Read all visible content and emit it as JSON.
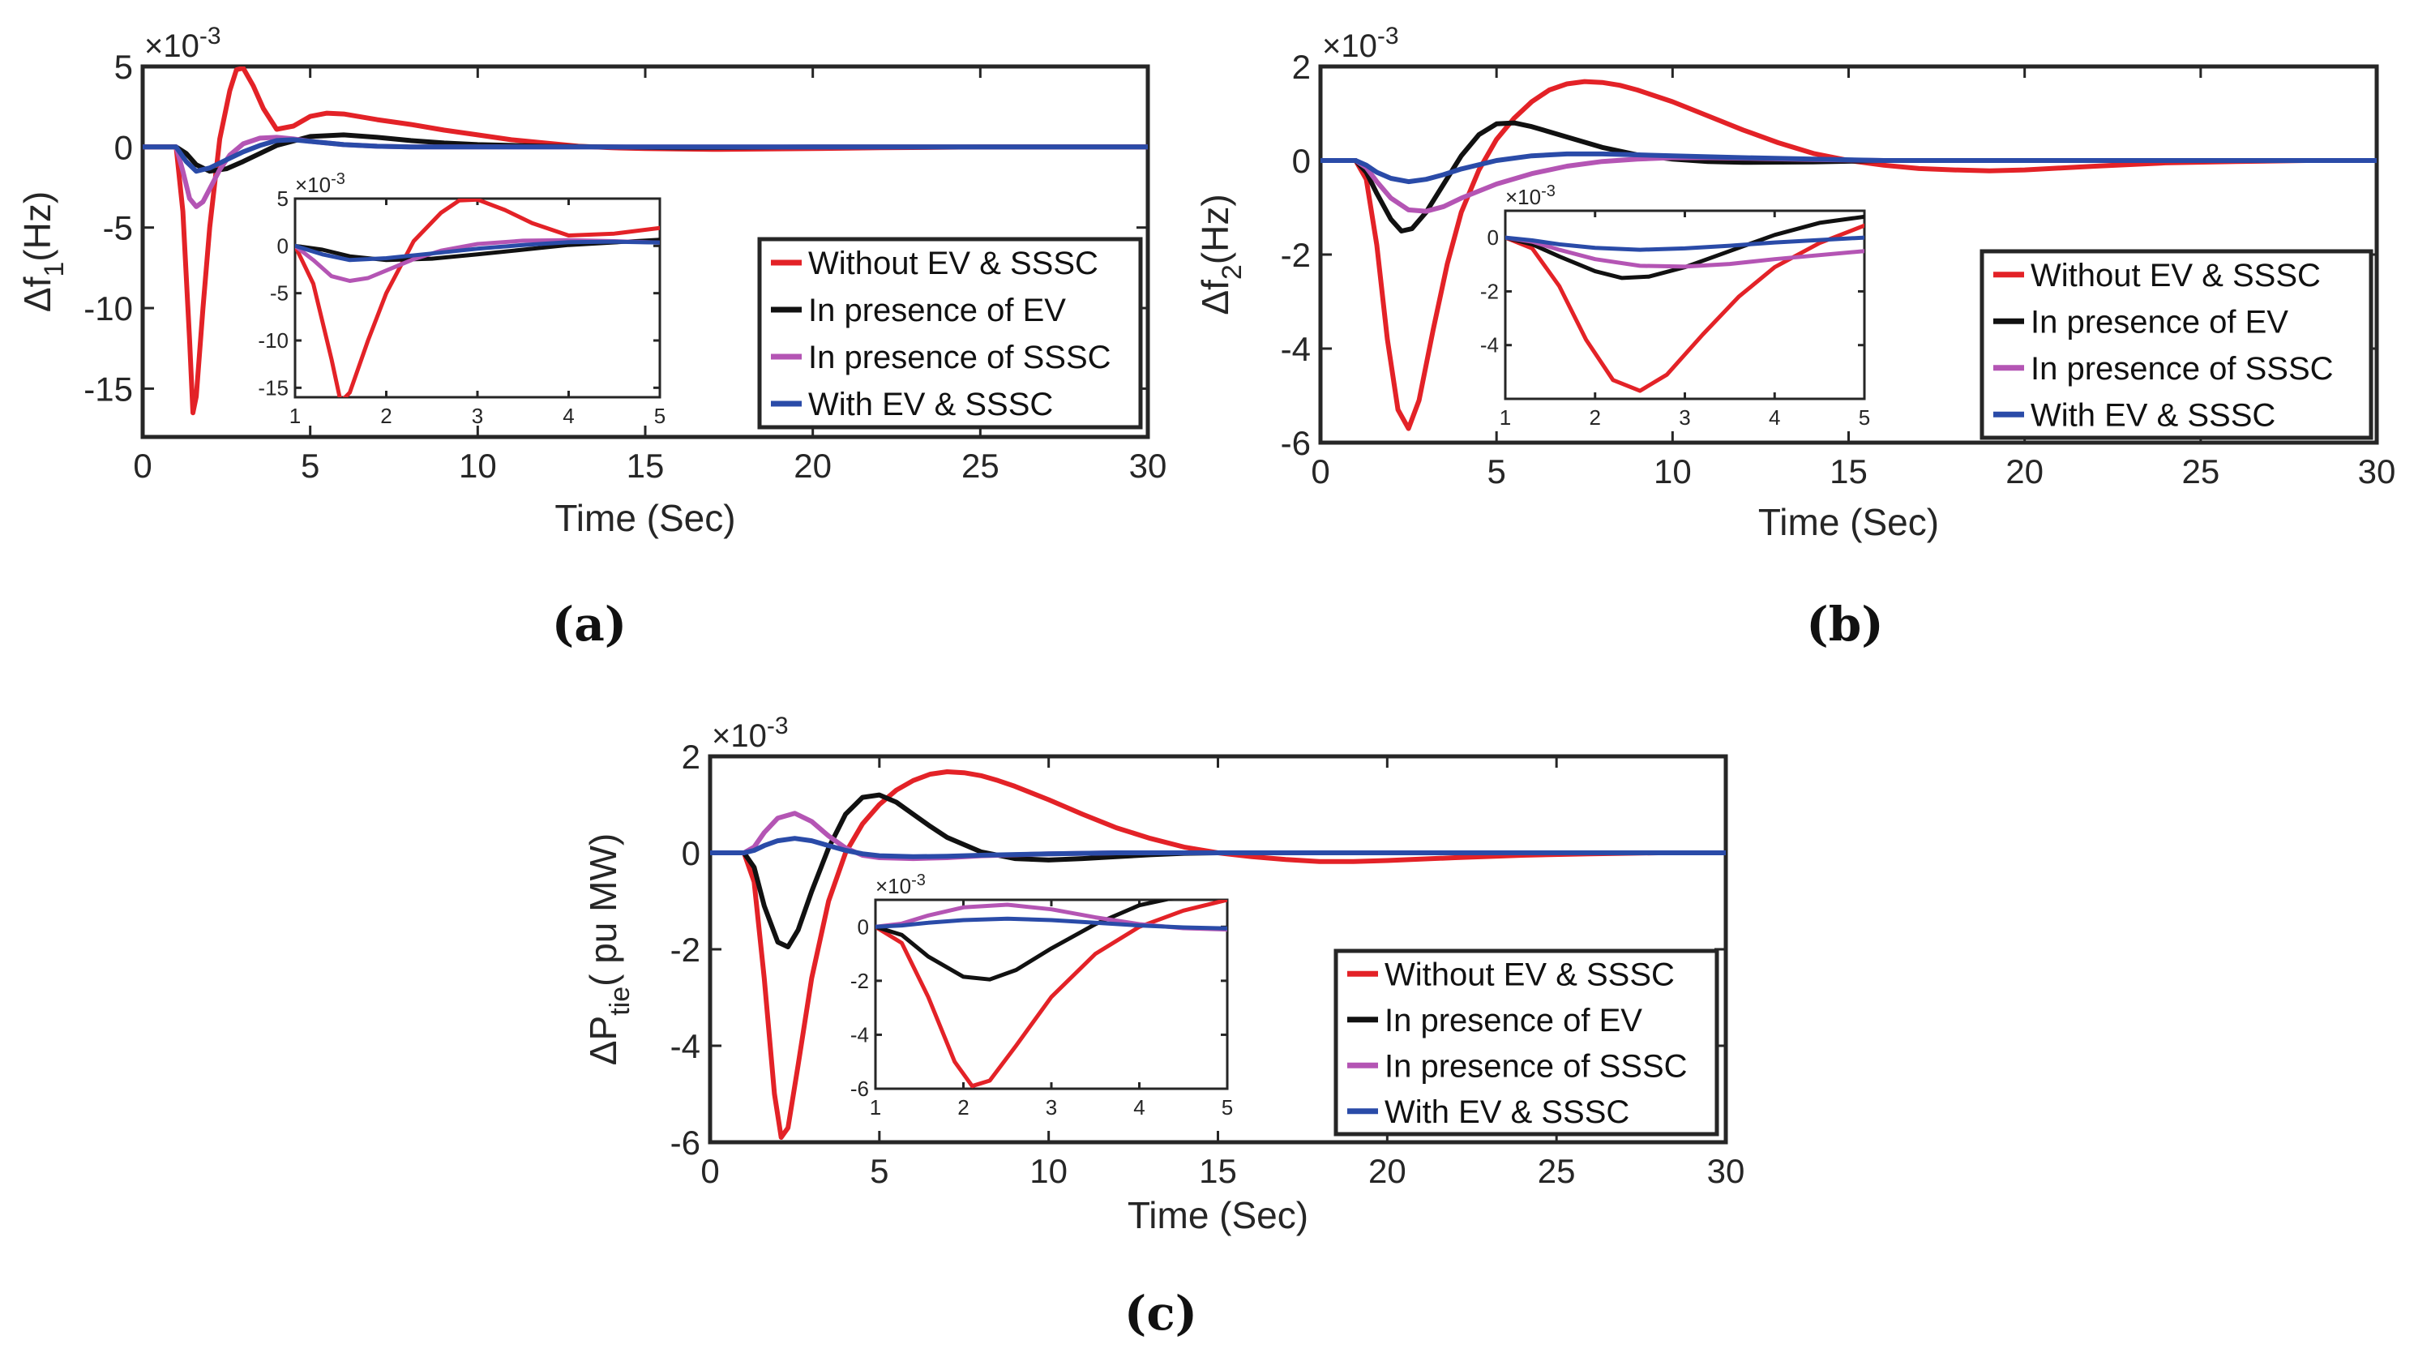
{
  "colors": {
    "without": "#e32227",
    "ev": "#111111",
    "sssc": "#b455b4",
    "both": "#2a4ba8"
  },
  "legend": [
    {
      "key": "without",
      "label": "Without EV & SSSC"
    },
    {
      "key": "ev",
      "label": "In presence of EV"
    },
    {
      "key": "sssc",
      "label": "In presence of SSSC"
    },
    {
      "key": "both",
      "label": "With EV & SSSC"
    }
  ],
  "chart_data": [
    {
      "id": "a",
      "type": "line",
      "caption": "(a)",
      "xlabel": "Time (Sec)",
      "ylabel_main": "Δf",
      "ylabel_sub": "1",
      "ylabel_tail": "(Hz)",
      "exponent": "×10",
      "exponent_power": "-3",
      "xlim": [
        0,
        30
      ],
      "ylim": [
        -18,
        5
      ],
      "xticks": [
        0,
        5,
        10,
        15,
        20,
        25,
        30
      ],
      "yticks": [
        -15,
        -10,
        -5,
        0,
        5
      ],
      "ytick_labels": [
        "-15",
        "-10",
        "-5",
        "0",
        "5"
      ],
      "series": [
        {
          "key": "without",
          "x": [
            0,
            1,
            1.2,
            1.4,
            1.5,
            1.6,
            1.8,
            2,
            2.3,
            2.6,
            2.8,
            3,
            3.3,
            3.6,
            4,
            4.5,
            5,
            5.5,
            6,
            7,
            8,
            9,
            10,
            11,
            12,
            13,
            14,
            15,
            17,
            20,
            22,
            25,
            27,
            30
          ],
          "y": [
            0,
            0,
            -4,
            -12,
            -16.5,
            -15.5,
            -10,
            -5,
            0.5,
            3.5,
            4.8,
            4.9,
            3.8,
            2.4,
            1.1,
            1.3,
            1.9,
            2.1,
            2.05,
            1.7,
            1.4,
            1.05,
            0.75,
            0.45,
            0.25,
            0.05,
            -0.05,
            -0.1,
            -0.15,
            -0.1,
            -0.05,
            0,
            0,
            0
          ]
        },
        {
          "key": "ev",
          "x": [
            0,
            1,
            1.3,
            1.6,
            2,
            2.5,
            3,
            3.5,
            4,
            5,
            6,
            7,
            8,
            9,
            10,
            12,
            14,
            16,
            20,
            25,
            30
          ],
          "y": [
            0,
            0,
            -0.4,
            -1.1,
            -1.5,
            -1.35,
            -0.9,
            -0.4,
            0.1,
            0.65,
            0.75,
            0.6,
            0.4,
            0.25,
            0.15,
            0.05,
            0,
            -0.05,
            0,
            0,
            0
          ]
        },
        {
          "key": "sssc",
          "x": [
            0,
            1,
            1.2,
            1.4,
            1.6,
            1.8,
            2,
            2.3,
            2.6,
            3,
            3.5,
            4,
            4.5,
            5,
            6,
            7,
            8,
            10,
            12,
            15,
            20,
            25,
            30
          ],
          "y": [
            0,
            0,
            -1.5,
            -3.2,
            -3.7,
            -3.4,
            -2.6,
            -1.4,
            -0.5,
            0.2,
            0.55,
            0.6,
            0.5,
            0.35,
            0.15,
            0.05,
            0,
            0,
            0,
            0,
            0,
            0,
            0
          ]
        },
        {
          "key": "both",
          "x": [
            0,
            1,
            1.3,
            1.6,
            2,
            2.5,
            3,
            3.5,
            4,
            4.5,
            5,
            6,
            7,
            8,
            10,
            12,
            15,
            20,
            25,
            30
          ],
          "y": [
            0,
            0,
            -0.9,
            -1.5,
            -1.3,
            -0.8,
            -0.3,
            0.1,
            0.4,
            0.45,
            0.35,
            0.15,
            0.05,
            0,
            0,
            0,
            0,
            0,
            0,
            0
          ]
        }
      ],
      "inset": {
        "xlim": [
          1,
          5
        ],
        "ylim": [
          -16,
          5
        ],
        "xticks": [
          1,
          2,
          3,
          4,
          5
        ],
        "yticks": [
          -15,
          -10,
          -5,
          0,
          5
        ],
        "ytick_labels": [
          "-15",
          "-10",
          "-5",
          "0",
          "5"
        ],
        "exponent": "×10",
        "exponent_power": "-3"
      }
    },
    {
      "id": "b",
      "type": "line",
      "caption": "(b)",
      "xlabel": "Time (Sec)",
      "ylabel_main": "Δf",
      "ylabel_sub": "2",
      "ylabel_tail": "(Hz)",
      "exponent": "×10",
      "exponent_power": "-3",
      "xlim": [
        0,
        30
      ],
      "ylim": [
        -6,
        2
      ],
      "xticks": [
        0,
        5,
        10,
        15,
        20,
        25,
        30
      ],
      "yticks": [
        -6,
        -4,
        -2,
        0,
        2
      ],
      "ytick_labels": [
        "-6",
        "-4",
        "-2",
        "0",
        "2"
      ],
      "series": [
        {
          "key": "without",
          "x": [
            0,
            1,
            1.3,
            1.6,
            1.9,
            2.2,
            2.5,
            2.8,
            3.2,
            3.6,
            4,
            4.5,
            5,
            5.5,
            6,
            6.5,
            7,
            7.5,
            8,
            8.5,
            9,
            10,
            11,
            12,
            13,
            14,
            15,
            16,
            17,
            18,
            19,
            20,
            22,
            24,
            26,
            28,
            30
          ],
          "y": [
            0,
            0,
            -0.4,
            -1.8,
            -3.8,
            -5.3,
            -5.7,
            -5.1,
            -3.6,
            -2.2,
            -1.1,
            -0.2,
            0.45,
            0.9,
            1.25,
            1.5,
            1.63,
            1.68,
            1.66,
            1.6,
            1.5,
            1.25,
            0.95,
            0.65,
            0.38,
            0.15,
            0,
            -0.1,
            -0.17,
            -0.2,
            -0.22,
            -0.2,
            -0.12,
            -0.05,
            -0.02,
            0,
            0
          ]
        },
        {
          "key": "ev",
          "x": [
            0,
            1,
            1.3,
            1.6,
            2,
            2.3,
            2.6,
            3,
            3.5,
            4,
            4.5,
            5,
            5.5,
            6,
            7,
            8,
            9,
            10,
            11,
            12,
            14,
            16,
            20,
            25,
            30
          ],
          "y": [
            0,
            0,
            -0.25,
            -0.7,
            -1.25,
            -1.5,
            -1.45,
            -1.1,
            -0.5,
            0.1,
            0.55,
            0.78,
            0.8,
            0.72,
            0.5,
            0.28,
            0.12,
            0.03,
            -0.02,
            -0.04,
            -0.03,
            0,
            0,
            0,
            0
          ]
        },
        {
          "key": "sssc",
          "x": [
            0,
            1,
            1.3,
            1.6,
            2,
            2.5,
            3,
            3.5,
            4,
            5,
            6,
            7,
            8,
            9,
            10,
            11,
            12,
            14,
            16,
            18,
            20,
            25,
            30
          ],
          "y": [
            0,
            0,
            -0.15,
            -0.45,
            -0.8,
            -1.05,
            -1.08,
            -0.98,
            -0.8,
            -0.5,
            -0.28,
            -0.12,
            -0.02,
            0.03,
            0.06,
            0.06,
            0.05,
            0.02,
            0,
            0,
            0,
            0,
            0
          ]
        },
        {
          "key": "both",
          "x": [
            0,
            1,
            1.3,
            1.6,
            2,
            2.5,
            3,
            3.5,
            4,
            5,
            6,
            7,
            8,
            9,
            10,
            12,
            14,
            16,
            20,
            25,
            30
          ],
          "y": [
            0,
            0,
            -0.1,
            -0.25,
            -0.38,
            -0.45,
            -0.4,
            -0.3,
            -0.18,
            0,
            0.1,
            0.14,
            0.14,
            0.12,
            0.1,
            0.06,
            0.03,
            0,
            0,
            0,
            0
          ]
        }
      ],
      "inset": {
        "xlim": [
          1,
          5
        ],
        "ylim": [
          -6,
          1
        ],
        "xticks": [
          1,
          2,
          3,
          4,
          5
        ],
        "yticks": [
          -4,
          -2,
          0
        ],
        "ytick_labels": [
          "-4",
          "-2",
          "0"
        ],
        "exponent": "×10",
        "exponent_power": "-3"
      }
    },
    {
      "id": "c",
      "type": "line",
      "caption": "(c)",
      "xlabel": "Time (Sec)",
      "ylabel_main": "ΔP",
      "ylabel_sub": "tie",
      "ylabel_tail": "( pu MW)",
      "exponent": "×10",
      "exponent_power": "-3",
      "xlim": [
        0,
        30
      ],
      "ylim": [
        -6,
        2
      ],
      "xticks": [
        0,
        5,
        10,
        15,
        20,
        25,
        30
      ],
      "yticks": [
        -6,
        -4,
        -2,
        0,
        2
      ],
      "ytick_labels": [
        "-6",
        "-4",
        "-2",
        "0",
        "2"
      ],
      "series": [
        {
          "key": "without",
          "x": [
            0,
            1,
            1.3,
            1.6,
            1.9,
            2.1,
            2.3,
            2.6,
            3,
            3.5,
            4,
            4.5,
            5,
            5.5,
            6,
            6.5,
            7,
            7.5,
            8,
            8.5,
            9,
            10,
            11,
            12,
            13,
            14,
            15,
            16,
            17,
            18,
            19,
            20,
            22,
            24,
            26,
            28,
            30
          ],
          "y": [
            0,
            0,
            -0.6,
            -2.6,
            -5,
            -5.9,
            -5.7,
            -4.4,
            -2.6,
            -1,
            0,
            0.6,
            1,
            1.3,
            1.5,
            1.63,
            1.68,
            1.66,
            1.6,
            1.5,
            1.38,
            1.1,
            0.8,
            0.52,
            0.3,
            0.12,
            0,
            -0.08,
            -0.14,
            -0.18,
            -0.18,
            -0.16,
            -0.1,
            -0.05,
            -0.02,
            0,
            0
          ]
        },
        {
          "key": "ev",
          "x": [
            0,
            1,
            1.3,
            1.6,
            2,
            2.3,
            2.6,
            3,
            3.5,
            4,
            4.5,
            5,
            5.5,
            6,
            6.5,
            7,
            8,
            9,
            10,
            11,
            12,
            13,
            14,
            15,
            17,
            20,
            25,
            30
          ],
          "y": [
            0,
            0,
            -0.3,
            -1.1,
            -1.85,
            -1.95,
            -1.6,
            -0.8,
            0.1,
            0.8,
            1.15,
            1.2,
            1.05,
            0.8,
            0.55,
            0.32,
            0.02,
            -0.12,
            -0.15,
            -0.12,
            -0.08,
            -0.04,
            -0.01,
            0,
            0,
            0,
            0,
            0
          ]
        },
        {
          "key": "sssc",
          "x": [
            0,
            1,
            1.3,
            1.6,
            2,
            2.5,
            3,
            3.5,
            4,
            4.5,
            5,
            6,
            7,
            8,
            10,
            12,
            15,
            20,
            25,
            30
          ],
          "y": [
            0,
            0,
            0.12,
            0.42,
            0.72,
            0.82,
            0.65,
            0.35,
            0.1,
            -0.05,
            -0.1,
            -0.12,
            -0.1,
            -0.06,
            -0.02,
            0,
            0,
            0,
            0,
            0
          ]
        },
        {
          "key": "both",
          "x": [
            0,
            1,
            1.3,
            1.6,
            2,
            2.5,
            3,
            3.5,
            4,
            4.5,
            5,
            6,
            7,
            8,
            10,
            12,
            15,
            20,
            25,
            30
          ],
          "y": [
            0,
            0,
            0.05,
            0.15,
            0.25,
            0.3,
            0.25,
            0.15,
            0.05,
            -0.02,
            -0.06,
            -0.08,
            -0.07,
            -0.05,
            -0.02,
            0,
            0,
            0,
            0,
            0
          ]
        }
      ],
      "inset": {
        "xlim": [
          1,
          5
        ],
        "ylim": [
          -6,
          1
        ],
        "xticks": [
          1,
          2,
          3,
          4,
          5
        ],
        "yticks": [
          -6,
          -4,
          -2,
          0
        ],
        "ytick_labels": [
          "-6",
          "-4",
          "-2",
          "0"
        ],
        "exponent": "×10",
        "exponent_power": "-3"
      }
    }
  ]
}
